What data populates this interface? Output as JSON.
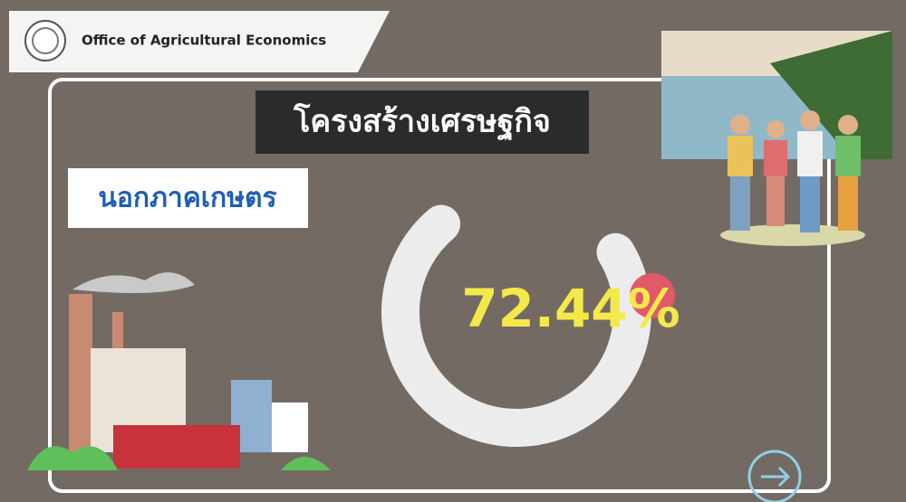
{
  "header": {
    "organization": "Office of Agricultural Economics"
  },
  "chart_data": {
    "type": "donut",
    "title": "โครงสร้างเศรษฐกิจ",
    "subtitle": "นอกภาคเกษตร",
    "values": [
      72.44
    ],
    "value_labels": [
      "72.44%"
    ],
    "color": "#ececec"
  }
}
